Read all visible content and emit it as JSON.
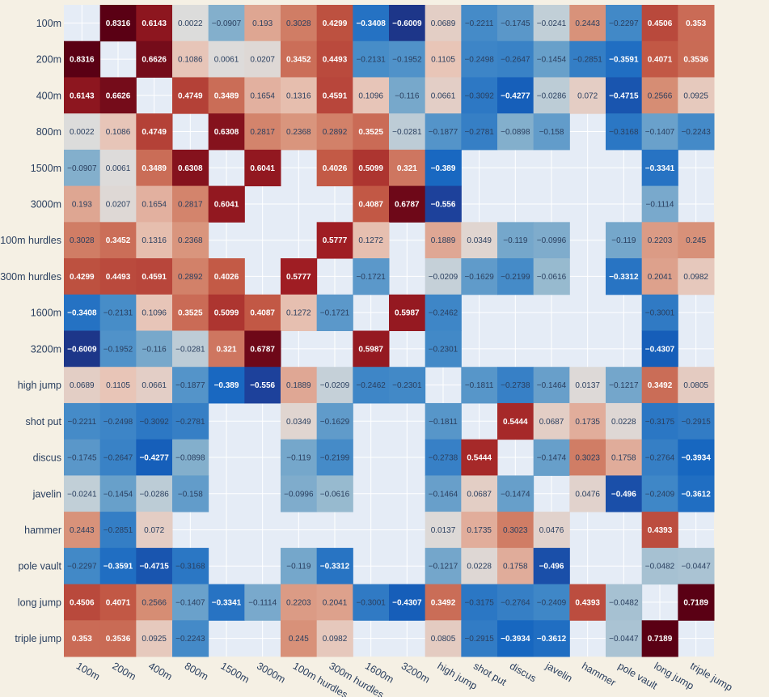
{
  "chart_data": {
    "type": "heatmap",
    "title": "",
    "xlabel": "",
    "ylabel": "",
    "labels": [
      "100m",
      "200m",
      "400m",
      "800m",
      "1500m",
      "3000m",
      "100m hurdles",
      "300m hurdles",
      "1600m",
      "3200m",
      "high jump",
      "shot put",
      "discus",
      "javelin",
      "hammer",
      "pole vault",
      "long jump",
      "triple jump"
    ],
    "zrange": [
      -0.7189,
      0.7189
    ],
    "colorscale": "RdBu_r (blue negative, red positive)",
    "background_color": "#e5ecf6",
    "z": [
      [
        null,
        0.8316,
        0.6143,
        0.0022,
        -0.0907,
        0.193,
        0.3028,
        0.4299,
        -0.3408,
        -0.6009,
        0.0689,
        -0.2211,
        -0.1745,
        -0.0241,
        0.2443,
        -0.2297,
        0.4506,
        0.353
      ],
      [
        0.8316,
        null,
        0.6626,
        0.1086,
        0.0061,
        0.0207,
        0.3452,
        0.4493,
        -0.2131,
        -0.1952,
        0.1105,
        -0.2498,
        -0.2647,
        -0.1454,
        -0.2851,
        -0.3591,
        0.4071,
        0.3536
      ],
      [
        0.6143,
        0.6626,
        null,
        0.4749,
        0.3489,
        0.1654,
        0.1316,
        0.4591,
        0.1096,
        -0.116,
        0.0661,
        -0.3092,
        -0.4277,
        -0.0286,
        0.072,
        -0.4715,
        0.2566,
        0.0925
      ],
      [
        0.0022,
        0.1086,
        0.4749,
        null,
        0.6308,
        0.2817,
        0.2368,
        0.2892,
        0.3525,
        -0.0281,
        -0.1877,
        -0.2781,
        -0.0898,
        -0.158,
        null,
        -0.3168,
        -0.1407,
        -0.2243
      ],
      [
        -0.0907,
        0.0061,
        0.3489,
        0.6308,
        null,
        0.6041,
        null,
        0.4026,
        0.5099,
        0.321,
        -0.389,
        null,
        null,
        null,
        null,
        null,
        -0.3341,
        null
      ],
      [
        0.193,
        0.0207,
        0.1654,
        0.2817,
        0.6041,
        null,
        null,
        null,
        0.4087,
        0.6787,
        -0.556,
        null,
        null,
        null,
        null,
        null,
        -0.1114,
        null
      ],
      [
        0.3028,
        0.3452,
        0.1316,
        0.2368,
        null,
        null,
        null,
        0.5777,
        0.1272,
        null,
        0.1889,
        0.0349,
        -0.119,
        -0.0996,
        null,
        -0.119,
        0.2203,
        0.245
      ],
      [
        0.4299,
        0.4493,
        0.4591,
        0.2892,
        0.4026,
        null,
        0.5777,
        null,
        -0.1721,
        null,
        -0.0209,
        -0.1629,
        -0.2199,
        -0.0616,
        null,
        -0.3312,
        0.2041,
        0.0982
      ],
      [
        -0.3408,
        -0.2131,
        0.1096,
        0.3525,
        0.5099,
        0.4087,
        0.1272,
        -0.1721,
        null,
        0.5987,
        -0.2462,
        null,
        null,
        null,
        null,
        null,
        -0.3001,
        null
      ],
      [
        -0.6009,
        -0.1952,
        -0.116,
        -0.0281,
        0.321,
        0.6787,
        null,
        null,
        0.5987,
        null,
        -0.2301,
        null,
        null,
        null,
        null,
        null,
        -0.4307,
        null
      ],
      [
        0.0689,
        0.1105,
        0.0661,
        -0.1877,
        -0.389,
        -0.556,
        0.1889,
        -0.0209,
        -0.2462,
        -0.2301,
        null,
        -0.1811,
        -0.2738,
        -0.1464,
        0.0137,
        -0.1217,
        0.3492,
        0.0805
      ],
      [
        -0.2211,
        -0.2498,
        -0.3092,
        -0.2781,
        null,
        null,
        0.0349,
        -0.1629,
        null,
        null,
        -0.1811,
        null,
        0.5444,
        0.0687,
        0.1735,
        0.0228,
        -0.3175,
        -0.2915
      ],
      [
        -0.1745,
        -0.2647,
        -0.4277,
        -0.0898,
        null,
        null,
        -0.119,
        -0.2199,
        null,
        null,
        -0.2738,
        0.5444,
        null,
        -0.1474,
        0.3023,
        0.1758,
        -0.2764,
        -0.3934
      ],
      [
        -0.0241,
        -0.1454,
        -0.0286,
        -0.158,
        null,
        null,
        -0.0996,
        -0.0616,
        null,
        null,
        -0.1464,
        0.0687,
        -0.1474,
        null,
        0.0476,
        -0.496,
        -0.2409,
        -0.3612
      ],
      [
        0.2443,
        -0.2851,
        0.072,
        null,
        null,
        null,
        null,
        null,
        null,
        null,
        0.0137,
        0.1735,
        0.3023,
        0.0476,
        null,
        null,
        0.4393,
        null
      ],
      [
        -0.2297,
        -0.3591,
        -0.4715,
        -0.3168,
        null,
        null,
        -0.119,
        -0.3312,
        null,
        null,
        -0.1217,
        0.0228,
        0.1758,
        -0.496,
        null,
        null,
        -0.0482,
        -0.0447
      ],
      [
        0.4506,
        0.4071,
        0.2566,
        -0.1407,
        -0.3341,
        -0.1114,
        0.2203,
        0.2041,
        -0.3001,
        -0.4307,
        0.3492,
        -0.3175,
        -0.2764,
        -0.2409,
        0.4393,
        -0.0482,
        null,
        0.7189
      ],
      [
        0.353,
        0.3536,
        0.0925,
        -0.2243,
        null,
        null,
        0.245,
        0.0982,
        null,
        null,
        0.0805,
        -0.2915,
        -0.3934,
        -0.3612,
        null,
        -0.0447,
        0.7189,
        null
      ]
    ]
  }
}
